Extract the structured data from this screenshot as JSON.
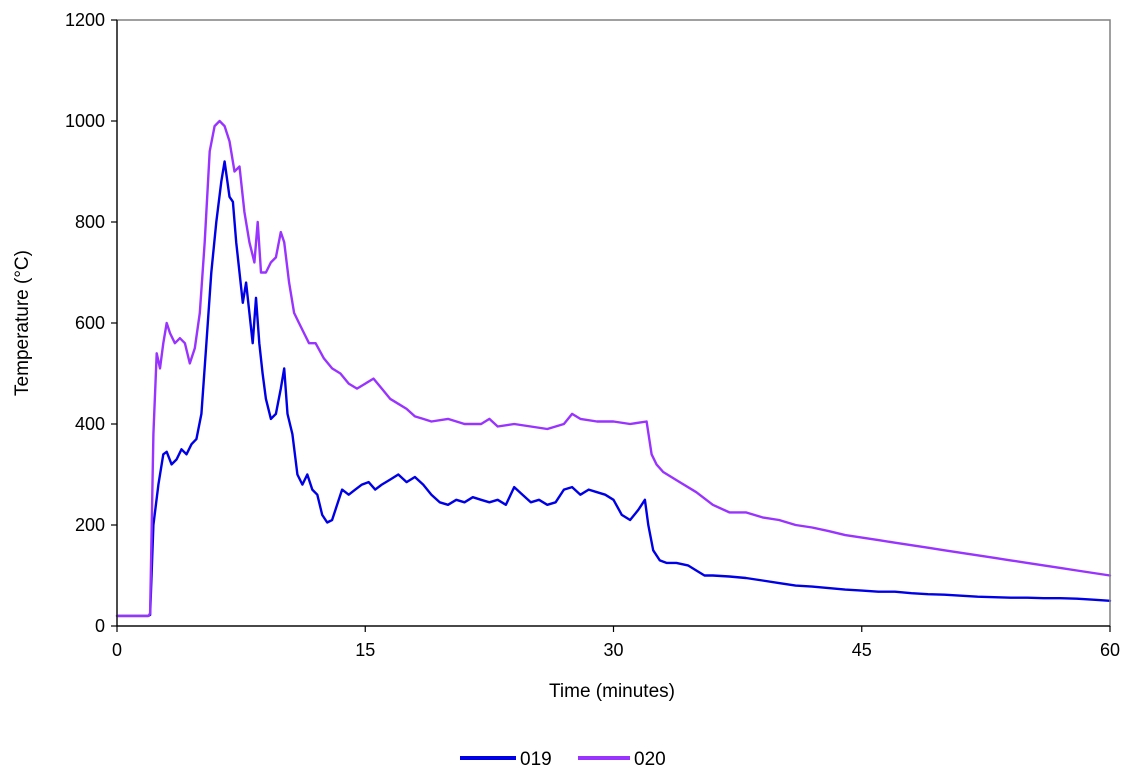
{
  "chart_data": {
    "type": "line",
    "title": "",
    "xlabel": "Time (minutes)",
    "ylabel": "Temperature (°C)",
    "xlim": [
      0,
      60
    ],
    "ylim": [
      0,
      1200
    ],
    "x_ticks": [
      "0",
      "15",
      "30",
      "45",
      "60"
    ],
    "y_ticks": [
      "0",
      "200",
      "400",
      "600",
      "800",
      "1000",
      "1200"
    ],
    "grid": false,
    "legend_position": "bottom",
    "series": [
      {
        "name": "019",
        "color": "#0000e6",
        "x": [
          0,
          1.9,
          2.0,
          2.2,
          2.5,
          2.8,
          3.0,
          3.3,
          3.6,
          3.9,
          4.2,
          4.5,
          4.8,
          5.1,
          5.4,
          5.7,
          6.0,
          6.3,
          6.5,
          6.8,
          7.0,
          7.2,
          7.4,
          7.6,
          7.8,
          8.0,
          8.2,
          8.4,
          8.6,
          8.8,
          9.0,
          9.3,
          9.6,
          9.9,
          10.1,
          10.3,
          10.6,
          10.9,
          11.2,
          11.5,
          11.8,
          12.1,
          12.4,
          12.7,
          13.0,
          13.3,
          13.6,
          14.0,
          14.4,
          14.8,
          15.2,
          15.6,
          16.0,
          16.5,
          17.0,
          17.5,
          18.0,
          18.5,
          19.0,
          19.5,
          20.0,
          20.5,
          21.0,
          21.5,
          22.0,
          22.5,
          23.0,
          23.5,
          24.0,
          24.5,
          25.0,
          25.5,
          26.0,
          26.5,
          27.0,
          27.5,
          28.0,
          28.5,
          29.0,
          29.5,
          30.0,
          30.5,
          31.0,
          31.5,
          31.9,
          32.1,
          32.4,
          32.8,
          33.2,
          33.8,
          34.5,
          35.0,
          35.5,
          36.0,
          37.0,
          38.0,
          39.0,
          40.0,
          41.0,
          42.0,
          43.0,
          44.0,
          45.0,
          46.0,
          47.0,
          48.0,
          49.0,
          50.0,
          51.0,
          52.0,
          53.0,
          54.0,
          55.0,
          56.0,
          57.0,
          58.0,
          59.0,
          60.0
        ],
        "values": [
          20,
          20,
          22,
          200,
          280,
          340,
          345,
          320,
          330,
          350,
          340,
          360,
          370,
          420,
          560,
          700,
          800,
          880,
          920,
          850,
          840,
          760,
          700,
          640,
          680,
          620,
          560,
          650,
          560,
          500,
          450,
          410,
          420,
          470,
          510,
          420,
          380,
          300,
          280,
          300,
          270,
          260,
          220,
          205,
          210,
          240,
          270,
          260,
          270,
          280,
          285,
          270,
          280,
          290,
          300,
          285,
          295,
          280,
          260,
          245,
          240,
          250,
          245,
          255,
          250,
          245,
          250,
          240,
          275,
          260,
          245,
          250,
          240,
          245,
          270,
          275,
          260,
          270,
          265,
          260,
          250,
          220,
          210,
          230,
          250,
          200,
          150,
          130,
          125,
          125,
          120,
          110,
          100,
          100,
          98,
          95,
          90,
          85,
          80,
          78,
          75,
          72,
          70,
          68,
          68,
          65,
          63,
          62,
          60,
          58,
          57,
          56,
          56,
          55,
          55,
          54,
          52,
          50
        ]
      },
      {
        "name": "020",
        "color": "#9933ff",
        "x": [
          0,
          1.9,
          2.0,
          2.2,
          2.4,
          2.6,
          2.8,
          3.0,
          3.2,
          3.5,
          3.8,
          4.1,
          4.4,
          4.7,
          5.0,
          5.3,
          5.6,
          5.9,
          6.2,
          6.5,
          6.8,
          7.1,
          7.4,
          7.7,
          8.0,
          8.3,
          8.5,
          8.7,
          9.0,
          9.3,
          9.6,
          9.9,
          10.1,
          10.4,
          10.7,
          11.0,
          11.3,
          11.6,
          12.0,
          12.5,
          13.0,
          13.5,
          14.0,
          14.5,
          15.0,
          15.5,
          16.0,
          16.5,
          17.0,
          17.5,
          18.0,
          18.5,
          19.0,
          20.0,
          21.0,
          22.0,
          22.5,
          23.0,
          24.0,
          25.0,
          26.0,
          27.0,
          27.5,
          28.0,
          29.0,
          30.0,
          31.0,
          32.0,
          32.3,
          32.6,
          33.0,
          34.0,
          35.0,
          36.0,
          37.0,
          38.0,
          39.0,
          40.0,
          41.0,
          42.0,
          43.0,
          44.0,
          45.0,
          46.0,
          47.0,
          48.0,
          49.0,
          50.0,
          51.0,
          52.0,
          53.0,
          54.0,
          55.0,
          56.0,
          57.0,
          58.0,
          59.0,
          60.0
        ],
        "values": [
          20,
          20,
          25,
          380,
          540,
          510,
          560,
          600,
          580,
          560,
          570,
          560,
          520,
          550,
          620,
          760,
          940,
          990,
          1000,
          990,
          960,
          900,
          910,
          820,
          760,
          720,
          800,
          700,
          700,
          720,
          730,
          780,
          760,
          680,
          620,
          600,
          580,
          560,
          560,
          530,
          510,
          500,
          480,
          470,
          480,
          490,
          470,
          450,
          440,
          430,
          415,
          410,
          405,
          410,
          400,
          400,
          410,
          395,
          400,
          395,
          390,
          400,
          420,
          410,
          405,
          405,
          400,
          405,
          340,
          320,
          305,
          285,
          265,
          240,
          225,
          225,
          215,
          210,
          200,
          195,
          188,
          180,
          175,
          170,
          165,
          160,
          155,
          150,
          145,
          140,
          135,
          130,
          125,
          120,
          115,
          110,
          105,
          100
        ]
      }
    ]
  }
}
